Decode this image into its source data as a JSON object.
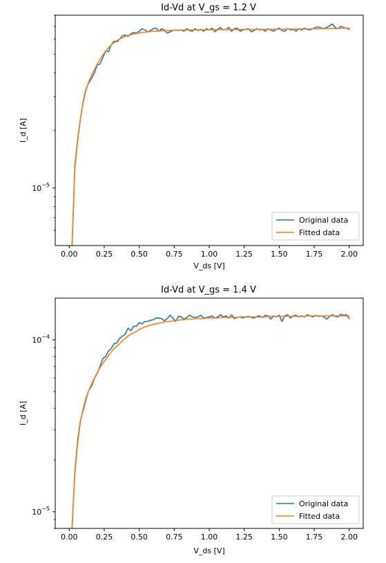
{
  "chart_data": [
    {
      "type": "line",
      "title": "Id-Vd at V_gs = 1.2 V",
      "xlabel": "V_ds [V]",
      "ylabel": "I_d [A]",
      "xlim": [
        -0.1,
        2.1
      ],
      "ylim": [
        5e-06,
        8e-05
      ],
      "yscale": "log",
      "x_ticks": [
        {
          "value": 0.0,
          "label": "0.00"
        },
        {
          "value": 0.25,
          "label": "0.25"
        },
        {
          "value": 0.5,
          "label": "0.50"
        },
        {
          "value": 0.75,
          "label": "0.75"
        },
        {
          "value": 1.0,
          "label": "1.00"
        },
        {
          "value": 1.25,
          "label": "1.25"
        },
        {
          "value": 1.5,
          "label": "1.50"
        },
        {
          "value": 1.75,
          "label": "1.75"
        },
        {
          "value": 2.0,
          "label": "2.00"
        }
      ],
      "y_ticks": [
        {
          "value": 1e-05,
          "base": "10",
          "exp": "−5"
        }
      ],
      "legend": {
        "position": "lower-right"
      },
      "grid": false,
      "x": [
        0.02,
        0.04,
        0.06,
        0.08,
        0.1,
        0.12,
        0.14,
        0.16,
        0.18,
        0.2,
        0.22,
        0.24,
        0.26,
        0.28,
        0.3,
        0.32,
        0.34,
        0.36,
        0.38,
        0.4,
        0.42,
        0.44,
        0.46,
        0.48,
        0.5,
        0.52,
        0.54,
        0.56,
        0.58,
        0.6,
        0.62,
        0.64,
        0.66,
        0.68,
        0.7,
        0.72,
        0.74,
        0.76,
        0.78,
        0.8,
        0.82,
        0.84,
        0.86,
        0.88,
        0.9,
        0.92,
        0.94,
        0.96,
        0.98,
        1.0,
        1.02,
        1.04,
        1.06,
        1.08,
        1.1,
        1.12,
        1.14,
        1.16,
        1.18,
        1.2,
        1.22,
        1.24,
        1.26,
        1.28,
        1.3,
        1.32,
        1.34,
        1.36,
        1.38,
        1.4,
        1.42,
        1.44,
        1.46,
        1.48,
        1.5,
        1.52,
        1.54,
        1.56,
        1.58,
        1.6,
        1.62,
        1.64,
        1.66,
        1.68,
        1.7,
        1.72,
        1.74,
        1.76,
        1.78,
        1.8,
        1.82,
        1.84,
        1.86,
        1.88,
        1.9,
        1.92,
        1.94,
        1.96,
        1.98,
        2.0
      ],
      "series": [
        {
          "name": "Original data",
          "color": "#1f77b4",
          "values": [
            5e-06,
            1.3e-05,
            1.8e-05,
            2.3e-05,
            2.85e-05,
            3.3e-05,
            3.55e-05,
            3.75e-05,
            4e-05,
            4.4e-05,
            4.45e-05,
            4.8e-05,
            5.2e-05,
            5.15e-05,
            5.6e-05,
            5.85e-05,
            5.8e-05,
            6e-05,
            6.25e-05,
            6.3e-05,
            6.2e-05,
            6.4e-05,
            6.5e-05,
            6.45e-05,
            6.6e-05,
            6.8e-05,
            6.7e-05,
            6.55e-05,
            6.65e-05,
            6.8e-05,
            6.85e-05,
            6.6e-05,
            6.8e-05,
            6.7e-05,
            6.45e-05,
            6.55e-05,
            6.65e-05,
            6.7e-05,
            6.65e-05,
            6.7e-05,
            6.6e-05,
            6.8e-05,
            6.65e-05,
            6.6e-05,
            6.8e-05,
            6.65e-05,
            6.75e-05,
            6.6e-05,
            6.8e-05,
            6.7e-05,
            6.85e-05,
            6.55e-05,
            6.75e-05,
            6.9e-05,
            6.7e-05,
            6.75e-05,
            6.9e-05,
            6.6e-05,
            6.8e-05,
            6.85e-05,
            6.6e-05,
            6.7e-05,
            6.75e-05,
            6.8e-05,
            6.55e-05,
            6.65e-05,
            6.8e-05,
            6.7e-05,
            6.75e-05,
            6.6e-05,
            6.8e-05,
            6.7e-05,
            6.6e-05,
            6.75e-05,
            6.85e-05,
            6.65e-05,
            6.6e-05,
            6.8e-05,
            6.7e-05,
            6.75e-05,
            6.6e-05,
            6.8e-05,
            6.7e-05,
            6.85e-05,
            6.75e-05,
            6.7e-05,
            6.8e-05,
            6.9e-05,
            6.95e-05,
            6.85e-05,
            6.8e-05,
            6.9e-05,
            7.05e-05,
            7.2e-05,
            6.9e-05,
            6.8e-05,
            7e-05,
            6.9e-05,
            6.85e-05,
            6.75e-05
          ]
        },
        {
          "name": "Fitted data",
          "color": "#ff7f0e",
          "values": [
            5e-06,
            1.25e-05,
            1.75e-05,
            2.3e-05,
            2.8e-05,
            3.25e-05,
            3.6e-05,
            3.9e-05,
            4.15e-05,
            4.45e-05,
            4.7e-05,
            4.95e-05,
            5.2e-05,
            5.4e-05,
            5.6e-05,
            5.75e-05,
            5.9e-05,
            6e-05,
            6.1e-05,
            6.2e-05,
            6.27e-05,
            6.33e-05,
            6.38e-05,
            6.42e-05,
            6.46e-05,
            6.5e-05,
            6.52e-05,
            6.55e-05,
            6.57e-05,
            6.59e-05,
            6.6e-05,
            6.62e-05,
            6.63e-05,
            6.64e-05,
            6.65e-05,
            6.66e-05,
            6.67e-05,
            6.67e-05,
            6.68e-05,
            6.68e-05,
            6.69e-05,
            6.69e-05,
            6.7e-05,
            6.7e-05,
            6.7e-05,
            6.71e-05,
            6.71e-05,
            6.71e-05,
            6.71e-05,
            6.72e-05,
            6.72e-05,
            6.72e-05,
            6.72e-05,
            6.72e-05,
            6.73e-05,
            6.73e-05,
            6.73e-05,
            6.73e-05,
            6.73e-05,
            6.73e-05,
            6.74e-05,
            6.74e-05,
            6.74e-05,
            6.74e-05,
            6.74e-05,
            6.74e-05,
            6.75e-05,
            6.75e-05,
            6.75e-05,
            6.75e-05,
            6.75e-05,
            6.75e-05,
            6.76e-05,
            6.76e-05,
            6.76e-05,
            6.76e-05,
            6.76e-05,
            6.77e-05,
            6.77e-05,
            6.77e-05,
            6.77e-05,
            6.77e-05,
            6.78e-05,
            6.78e-05,
            6.78e-05,
            6.78e-05,
            6.79e-05,
            6.79e-05,
            6.79e-05,
            6.8e-05,
            6.8e-05,
            6.8e-05,
            6.81e-05,
            6.81e-05,
            6.82e-05,
            6.82e-05,
            6.83e-05,
            6.84e-05,
            6.85e-05,
            6.85e-05
          ]
        }
      ]
    },
    {
      "type": "line",
      "title": "Id-Vd at V_gs = 1.4 V",
      "xlabel": "V_ds [V]",
      "ylabel": "I_d [A]",
      "xlim": [
        -0.1,
        2.1
      ],
      "ylim": [
        8e-06,
        0.000175
      ],
      "yscale": "log",
      "x_ticks": [
        {
          "value": 0.0,
          "label": "0.00"
        },
        {
          "value": 0.25,
          "label": "0.25"
        },
        {
          "value": 0.5,
          "label": "0.50"
        },
        {
          "value": 0.75,
          "label": "0.75"
        },
        {
          "value": 1.0,
          "label": "1.00"
        },
        {
          "value": 1.25,
          "label": "1.25"
        },
        {
          "value": 1.5,
          "label": "1.50"
        },
        {
          "value": 1.75,
          "label": "1.75"
        },
        {
          "value": 2.0,
          "label": "2.00"
        }
      ],
      "y_ticks": [
        {
          "value": 1e-05,
          "base": "10",
          "exp": "−5"
        },
        {
          "value": 0.0001,
          "base": "10",
          "exp": "−4"
        }
      ],
      "legend": {
        "position": "lower-right"
      },
      "grid": false,
      "x": [
        0.02,
        0.04,
        0.06,
        0.08,
        0.1,
        0.12,
        0.14,
        0.16,
        0.18,
        0.2,
        0.22,
        0.24,
        0.26,
        0.28,
        0.3,
        0.32,
        0.34,
        0.36,
        0.38,
        0.4,
        0.42,
        0.44,
        0.46,
        0.48,
        0.5,
        0.52,
        0.54,
        0.56,
        0.58,
        0.6,
        0.62,
        0.64,
        0.66,
        0.68,
        0.7,
        0.72,
        0.74,
        0.76,
        0.78,
        0.8,
        0.82,
        0.84,
        0.86,
        0.88,
        0.9,
        0.92,
        0.94,
        0.96,
        0.98,
        1.0,
        1.02,
        1.04,
        1.06,
        1.08,
        1.1,
        1.12,
        1.14,
        1.16,
        1.18,
        1.2,
        1.22,
        1.24,
        1.26,
        1.28,
        1.3,
        1.32,
        1.34,
        1.36,
        1.38,
        1.4,
        1.42,
        1.44,
        1.46,
        1.48,
        1.5,
        1.52,
        1.54,
        1.56,
        1.58,
        1.6,
        1.62,
        1.64,
        1.66,
        1.68,
        1.7,
        1.72,
        1.74,
        1.76,
        1.78,
        1.8,
        1.82,
        1.84,
        1.86,
        1.88,
        1.9,
        1.92,
        1.94,
        1.96,
        1.98,
        2.0
      ],
      "series": [
        {
          "name": "Original data",
          "color": "#1f77b4",
          "values": [
            8e-06,
            1.7e-05,
            2.6e-05,
            3.4e-05,
            3.9e-05,
            4.5e-05,
            5.1e-05,
            5.4e-05,
            5.95e-05,
            6.4e-05,
            7e-05,
            7.8e-05,
            8e-05,
            8.6e-05,
            8.9e-05,
            9.5e-05,
            9.6e-05,
            0.000102,
            0.000105,
            0.000108,
            0.000117,
            0.000113,
            0.00012,
            0.00012,
            0.000126,
            0.000124,
            0.000128,
            0.000128,
            0.00013,
            0.000131,
            0.000134,
            0.000134,
            0.000133,
            0.000129,
            0.000133,
            0.000139,
            0.000134,
            0.000128,
            0.000137,
            0.000136,
            0.000132,
            0.000135,
            0.000139,
            0.000136,
            0.000135,
            0.000136,
            0.000139,
            0.000134,
            0.000135,
            0.000136,
            0.000138,
            0.000134,
            0.000136,
            0.00014,
            0.000136,
            0.000138,
            0.000134,
            0.00014,
            0.000133,
            0.000135,
            0.000136,
            0.000134,
            0.000136,
            0.000137,
            0.000135,
            0.000134,
            0.000137,
            0.000138,
            0.000135,
            0.000139,
            0.000138,
            0.000132,
            0.000138,
            0.000136,
            0.000139,
            0.000128,
            0.000138,
            0.00014,
            0.000134,
            0.000138,
            0.000139,
            0.000136,
            0.000138,
            0.000136,
            0.00014,
            0.000138,
            0.000136,
            0.000139,
            0.000137,
            0.000138,
            0.000136,
            0.000132,
            0.000137,
            0.00014,
            0.000137,
            0.000136,
            0.000141,
            0.000139,
            0.00014,
            0.000133
          ]
        },
        {
          "name": "Fitted data",
          "color": "#ff7f0e",
          "values": [
            8e-06,
            1.65e-05,
            2.5e-05,
            3.35e-05,
            4e-05,
            4.6e-05,
            5.1e-05,
            5.55e-05,
            6e-05,
            6.45e-05,
            6.9e-05,
            7.3e-05,
            7.7e-05,
            8.1e-05,
            8.5e-05,
            8.9e-05,
            9.2e-05,
            9.5e-05,
            9.85e-05,
            0.000102,
            0.000105,
            0.000108,
            0.00011,
            0.000112,
            0.000115,
            0.000117,
            0.000119,
            0.00012,
            0.000122,
            0.000123,
            0.000124,
            0.000125,
            0.000126,
            0.000127,
            0.000128,
            0.000128,
            0.000129,
            0.00013,
            0.00013,
            0.000131,
            0.000131,
            0.000132,
            0.000132,
            0.000132,
            0.000133,
            0.000133,
            0.000133,
            0.000133,
            0.000134,
            0.000134,
            0.000134,
            0.000134,
            0.000134,
            0.000135,
            0.000135,
            0.000135,
            0.000135,
            0.000135,
            0.000135,
            0.000135,
            0.000136,
            0.000136,
            0.000136,
            0.000136,
            0.000136,
            0.000136,
            0.000136,
            0.000136,
            0.000136,
            0.000136,
            0.000137,
            0.000137,
            0.000137,
            0.000137,
            0.000137,
            0.000137,
            0.000137,
            0.000137,
            0.000137,
            0.000137,
            0.000137,
            0.000137,
            0.000137,
            0.000137,
            0.000138,
            0.000138,
            0.000138,
            0.000138,
            0.000138,
            0.000138,
            0.000138,
            0.000138,
            0.000138,
            0.000138,
            0.000138,
            0.000138,
            0.000138,
            0.000138,
            0.000138,
            0.000138
          ]
        }
      ]
    }
  ]
}
